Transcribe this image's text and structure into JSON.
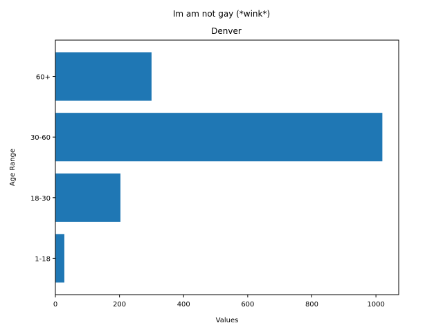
{
  "chart_data": {
    "type": "bar",
    "orientation": "horizontal",
    "title": "Im am not gay (*wink*)",
    "subtitle": "Denver",
    "xlabel": "Values",
    "ylabel": "Age Range",
    "categories": [
      "1-18",
      "18-30",
      "30-60",
      "60+"
    ],
    "values": [
      28,
      203,
      1020,
      300
    ],
    "xlim": [
      0,
      1071
    ],
    "xticks": [
      0,
      200,
      400,
      600,
      800,
      1000
    ],
    "bar_color": "#1f77b4",
    "grid": false,
    "legend": "none"
  }
}
